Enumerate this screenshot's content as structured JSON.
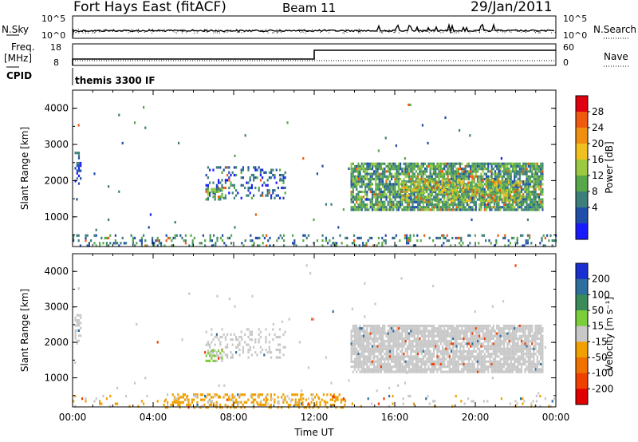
{
  "header": {
    "station": "Fort Hays East (fitACF)",
    "beam": "Beam 11",
    "date": "29/Jan/2011"
  },
  "strip_labels": {
    "nsky": "N.Sky",
    "nsearch": "N.Search",
    "freq": "Freq.",
    "freq_unit": "[MHz]",
    "nave": "Nave",
    "cpid": "CPID",
    "cpid_value": "themis 3300 IF"
  },
  "strip_ticks": {
    "noise_top": "10^5",
    "noise_bottom": "10^0",
    "freq_top": "18",
    "freq_bottom": "8",
    "nave_top": "60",
    "nave_bottom": "0"
  },
  "axes": {
    "xlabel": "Time UT",
    "x_ticks": [
      "00:00",
      "04:00",
      "08:00",
      "12:00",
      "16:00",
      "20:00",
      "00:00"
    ],
    "ylabel": "Slant Range [km]",
    "y_ticks": [
      "1000",
      "2000",
      "3000",
      "4000"
    ]
  },
  "colorbars": {
    "power": {
      "label": "Power [dB]",
      "ticks": [
        "4",
        "8",
        "12",
        "16",
        "20",
        "24",
        "28"
      ],
      "colors": [
        "#1a1aff",
        "#1f4fa8",
        "#3c7f7a",
        "#57a84a",
        "#9bc93f",
        "#f0c020",
        "#f09010",
        "#f05a10",
        "#e00010"
      ]
    },
    "velocity": {
      "label": "Velocity [m s⁻¹]",
      "ticks": [
        "200",
        "100",
        "50",
        "15",
        "-15",
        "-50",
        "-100",
        "-200"
      ],
      "colors": [
        "#1a2fd0",
        "#2f6f9f",
        "#3a8a5a",
        "#7ccd3a",
        "#c8c8c8",
        "#f0a000",
        "#f07000",
        "#f04000",
        "#e00000"
      ]
    }
  },
  "chart_data": [
    {
      "type": "line",
      "title": "N.Sky / N.Search",
      "x_range": [
        "00:00",
        "24:00"
      ],
      "y_scale": "log",
      "ylim": [
        1,
        100000
      ],
      "series": [
        {
          "name": "N.Sky",
          "approx_level": 20
        },
        {
          "name": "N.Search",
          "approx_level": 1
        }
      ]
    },
    {
      "type": "line",
      "title": "Freq. / Nave",
      "x_range": [
        "00:00",
        "24:00"
      ],
      "series": [
        {
          "name": "Freq. [MHz]",
          "x": [
            "00:00",
            "12:00",
            "12:00",
            "24:00"
          ],
          "values": [
            10.5,
            10.5,
            14.2,
            14.2
          ],
          "ylim": [
            8,
            18
          ]
        },
        {
          "name": "Nave",
          "x": [
            "00:00",
            "24:00"
          ],
          "values": [
            22,
            22
          ],
          "ylim": [
            0,
            60
          ]
        }
      ]
    },
    {
      "type": "heatmap",
      "name": "Power [dB]",
      "x_range_hours": [
        0,
        24
      ],
      "y_range_km": [
        180,
        4500
      ],
      "clim": [
        0,
        32
      ],
      "regions": [
        {
          "t0": 0.1,
          "t1": 0.4,
          "r0": 1950,
          "r1": 2800,
          "density": 0.55,
          "level": 6
        },
        {
          "t0": 6.6,
          "t1": 10.6,
          "r0": 1550,
          "r1": 2400,
          "density": 0.28,
          "level": 7
        },
        {
          "t0": 6.6,
          "t1": 7.4,
          "r0": 1500,
          "r1": 1800,
          "density": 0.5,
          "level": 13
        },
        {
          "t0": 13.8,
          "t1": 23.3,
          "r0": 1200,
          "r1": 2500,
          "density": 0.85,
          "level": 11
        },
        {
          "t0": 16.3,
          "t1": 22.3,
          "r0": 1450,
          "r1": 2050,
          "density": 0.45,
          "level": 17
        },
        {
          "t0": 0.0,
          "t1": 24.0,
          "r0": 180,
          "r1": 520,
          "density": 0.22,
          "level": 9
        },
        {
          "t0": 0.0,
          "t1": 24.0,
          "r0": 600,
          "r1": 4200,
          "density": 0.004,
          "level": 8
        }
      ]
    },
    {
      "type": "heatmap",
      "name": "Velocity [m s-1]",
      "x_range_hours": [
        0,
        24
      ],
      "y_range_km": [
        180,
        4500
      ],
      "clim": [
        -200,
        200
      ],
      "regions": [
        {
          "t0": 0.1,
          "t1": 0.4,
          "r0": 1950,
          "r1": 2800,
          "density": 0.5,
          "mean_velocity": 0
        },
        {
          "t0": 6.6,
          "t1": 10.6,
          "r0": 1550,
          "r1": 2400,
          "density": 0.25,
          "mean_velocity": 0
        },
        {
          "t0": 6.6,
          "t1": 7.4,
          "r0": 1450,
          "r1": 1800,
          "density": 0.55,
          "mean_velocity": 30
        },
        {
          "t0": 13.8,
          "t1": 23.3,
          "r0": 1200,
          "r1": 2500,
          "density": 0.85,
          "mean_velocity": 0
        },
        {
          "t0": 4.5,
          "t1": 13.5,
          "r0": 180,
          "r1": 560,
          "density": 0.35,
          "mean_velocity": -40
        },
        {
          "t0": 0.0,
          "t1": 24.0,
          "r0": 180,
          "r1": 520,
          "density": 0.08,
          "mean_velocity": -20
        },
        {
          "t0": 0.0,
          "t1": 24.0,
          "r0": 600,
          "r1": 4200,
          "density": 0.004,
          "mean_velocity": 0
        }
      ]
    }
  ]
}
